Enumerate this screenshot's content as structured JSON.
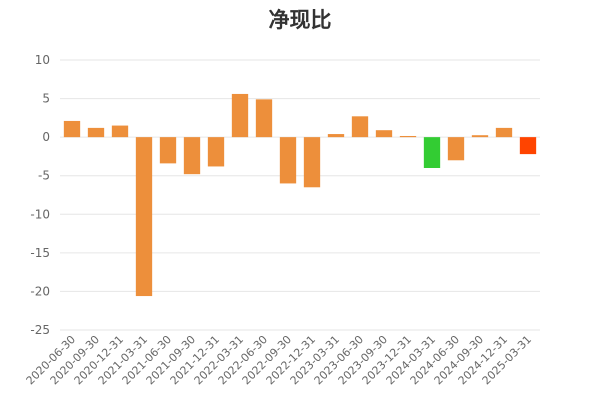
{
  "chart_data": {
    "type": "bar",
    "title": "净现比",
    "xlabel": "",
    "ylabel": "",
    "ylim": [
      -25,
      10
    ],
    "yticks": [
      10,
      5,
      0,
      -5,
      -10,
      -15,
      -20,
      -25
    ],
    "grid": true,
    "legend": "none",
    "categories": [
      "2020-06-30",
      "2020-09-30",
      "2020-12-31",
      "2021-03-31",
      "2021-06-30",
      "2021-09-30",
      "2021-12-31",
      "2022-03-31",
      "2022-06-30",
      "2022-09-30",
      "2022-12-31",
      "2023-03-31",
      "2023-06-30",
      "2023-09-30",
      "2023-12-31",
      "2024-03-31",
      "2024-06-30",
      "2024-09-30",
      "2024-12-31",
      "2025-03-31"
    ],
    "values": [
      2.1,
      1.2,
      1.5,
      -20.6,
      -3.4,
      -4.8,
      -3.8,
      5.6,
      4.9,
      -6.0,
      -6.5,
      0.4,
      2.7,
      0.9,
      0.15,
      -4.0,
      -3.0,
      0.25,
      1.2,
      -2.2
    ],
    "colors": {
      "default": "#ed8f3b",
      "highlight_min": "#33cc33",
      "highlight_last": "#ff4400"
    },
    "bar_colors": [
      "default",
      "default",
      "default",
      "default",
      "default",
      "default",
      "default",
      "default",
      "default",
      "default",
      "default",
      "default",
      "default",
      "default",
      "default",
      "highlight_min",
      "default",
      "default",
      "default",
      "highlight_last"
    ]
  }
}
